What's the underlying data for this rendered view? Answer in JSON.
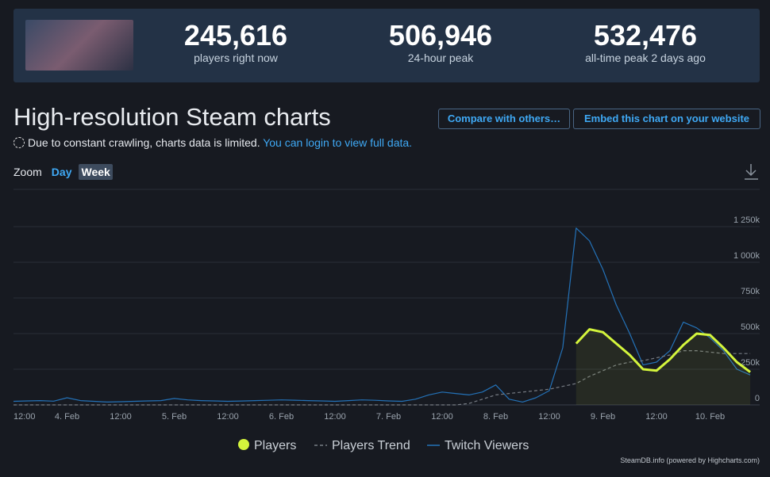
{
  "header": {
    "stats": [
      {
        "value": "245,616",
        "label": "players right now"
      },
      {
        "value": "506,946",
        "label": "24-hour peak"
      },
      {
        "value": "532,476",
        "label": "all-time peak 2 days ago"
      }
    ]
  },
  "title": "High-resolution Steam charts",
  "buttons": [
    "Compare with others…",
    "Embed this chart on your website"
  ],
  "notice": {
    "text": "Due to constant crawling, charts data is limited.",
    "link": "You can login to view full data."
  },
  "zoom": {
    "label": "Zoom",
    "options": [
      "Day",
      "Week"
    ]
  },
  "chart_data": {
    "type": "line",
    "categories": [
      "12:00",
      null,
      null,
      null,
      "4. Feb",
      null,
      null,
      null,
      "12:00",
      null,
      null,
      null,
      "5. Feb",
      null,
      null,
      null,
      "12:00",
      null,
      null,
      null,
      "6. Feb",
      null,
      null,
      null,
      "12:00",
      null,
      null,
      null,
      "7. Feb",
      null,
      null,
      null,
      "12:00",
      null,
      null,
      null,
      "8. Feb",
      null,
      null,
      null,
      "12:00",
      null,
      null,
      null,
      "9. Feb",
      null,
      null,
      null,
      "12:00",
      null,
      null,
      null,
      "10. Feb",
      null,
      null,
      null
    ],
    "series": [
      {
        "name": "Players",
        "color": "#d4f53c",
        "fill": true,
        "values": [
          null,
          null,
          null,
          null,
          null,
          null,
          null,
          null,
          null,
          null,
          null,
          null,
          null,
          null,
          null,
          null,
          null,
          null,
          null,
          null,
          null,
          null,
          null,
          null,
          null,
          null,
          null,
          null,
          null,
          null,
          null,
          null,
          null,
          null,
          null,
          null,
          null,
          null,
          null,
          null,
          null,
          null,
          430000,
          530000,
          510000,
          430000,
          350000,
          250000,
          240000,
          320000,
          420000,
          500000,
          490000,
          400000,
          300000,
          230000
        ]
      },
      {
        "name": "Players Trend",
        "color": "#777c84",
        "style": "dashed",
        "values": [
          0,
          0,
          0,
          0,
          0,
          0,
          0,
          0,
          0,
          0,
          0,
          0,
          0,
          0,
          0,
          0,
          0,
          0,
          0,
          0,
          0,
          0,
          0,
          0,
          0,
          0,
          0,
          0,
          0,
          0,
          0,
          0,
          0,
          0,
          10000,
          40000,
          70000,
          80000,
          90000,
          100000,
          110000,
          130000,
          150000,
          200000,
          240000,
          280000,
          300000,
          310000,
          330000,
          350000,
          380000,
          380000,
          370000,
          360000,
          360000,
          360000
        ]
      },
      {
        "name": "Twitch Viewers",
        "color": "#2472b8",
        "values": [
          25000,
          28000,
          30000,
          26000,
          50000,
          30000,
          25000,
          20000,
          22000,
          25000,
          28000,
          30000,
          45000,
          35000,
          30000,
          28000,
          25000,
          27000,
          30000,
          32000,
          35000,
          33000,
          30000,
          28000,
          25000,
          30000,
          35000,
          32000,
          28000,
          25000,
          40000,
          70000,
          90000,
          80000,
          70000,
          90000,
          140000,
          40000,
          20000,
          50000,
          100000,
          400000,
          1240000,
          1150000,
          950000,
          700000,
          500000,
          280000,
          300000,
          380000,
          580000,
          540000,
          470000,
          380000,
          250000,
          210000
        ]
      }
    ],
    "ylim": [
      0,
      1250000
    ],
    "yticks": [
      0,
      {
        "value": 250000,
        "label": "250k"
      },
      {
        "value": 500000,
        "label": "500k"
      },
      {
        "value": 750000,
        "label": "750k"
      },
      {
        "value": 1000000,
        "label": "1 000k"
      },
      {
        "value": 1250000,
        "label": "1 250k"
      }
    ],
    "grid": true,
    "legend": "bottom"
  },
  "credit": "SteamDB.info (powered by Highcharts.com)"
}
